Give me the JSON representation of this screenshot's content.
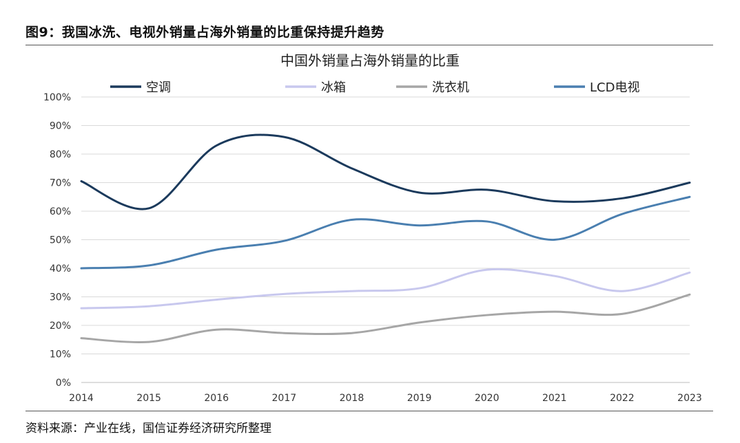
{
  "figure_title": "图9：我国冰洗、电视外销量占海外销量的比重保持提升趋势",
  "source": "资料来源：产业在线，国信证券经济研究所整理",
  "chart_data": {
    "type": "line",
    "title": "中国外销量占海外销量的比重",
    "xlabel": "",
    "ylabel": "",
    "x": [
      "2014",
      "2015",
      "2016",
      "2017",
      "2018",
      "2019",
      "2020",
      "2021",
      "2022",
      "2023"
    ],
    "ylim": [
      0,
      100
    ],
    "yticks": [
      "0%",
      "10%",
      "20%",
      "30%",
      "40%",
      "50%",
      "60%",
      "70%",
      "80%",
      "90%",
      "100%"
    ],
    "grid": true,
    "legend": "top",
    "series": [
      {
        "name": "空调",
        "color": "#1b3a5c",
        "values": [
          70.5,
          61,
          83,
          86,
          75,
          66.5,
          67.5,
          63.5,
          64.5,
          70
        ]
      },
      {
        "name": "冰箱",
        "color": "#c8c8ee",
        "values": [
          26,
          26.7,
          29,
          31,
          32,
          33,
          39.5,
          37.3,
          32,
          38.5
        ]
      },
      {
        "name": "洗衣机",
        "color": "#a6a6a6",
        "values": [
          15.5,
          14.2,
          18.5,
          17.3,
          17.3,
          21,
          23.6,
          24.8,
          24,
          30.8
        ]
      },
      {
        "name": "LCD电视",
        "color": "#4a7fb0",
        "values": [
          40,
          41,
          46.5,
          49.6,
          57,
          55,
          56.4,
          50,
          59,
          65
        ]
      }
    ]
  }
}
